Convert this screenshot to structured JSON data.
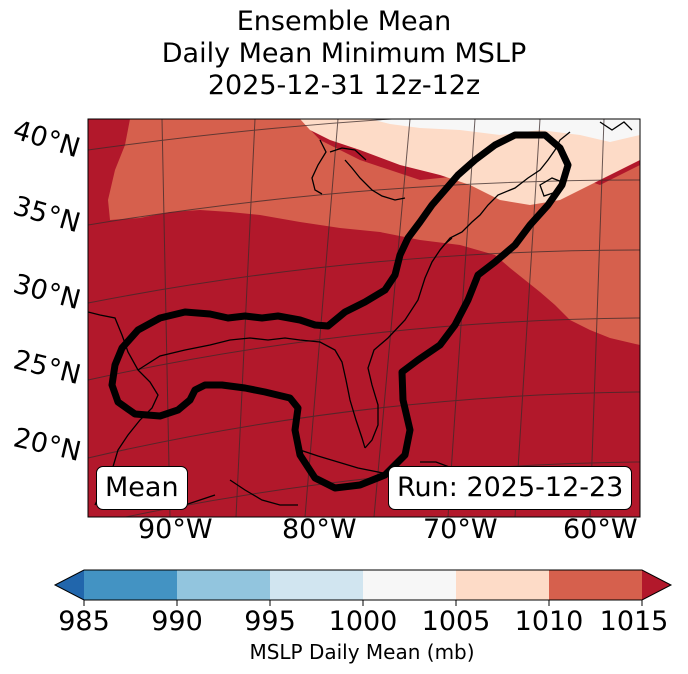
{
  "title": {
    "line1": "Ensemble Mean",
    "line2": "Daily Mean Minimum MSLP",
    "line3": "2025-12-31 12z-12z"
  },
  "map": {
    "lat_labels": [
      "40°N",
      "35°N",
      "30°N",
      "25°N",
      "20°N"
    ],
    "lon_labels": [
      "90°W",
      "80°W",
      "70°W",
      "60°W"
    ],
    "left_box": "Mean",
    "right_box": "Run: 2025-12-23"
  },
  "colorbar": {
    "ticks": [
      "985",
      "990",
      "995",
      "1000",
      "1005",
      "1010",
      "1015"
    ],
    "label": "MSLP Daily Mean (mb)",
    "colors": {
      "below": "#2166ac",
      "c985_990": "#4393c3",
      "c990_995": "#92c5de",
      "c995_1000": "#d1e5f0",
      "c1000_1005": "#f7f7f7",
      "c1005_1010": "#fddbc7",
      "c1010_1015": "#d6604d",
      "above": "#b2182b"
    }
  }
}
